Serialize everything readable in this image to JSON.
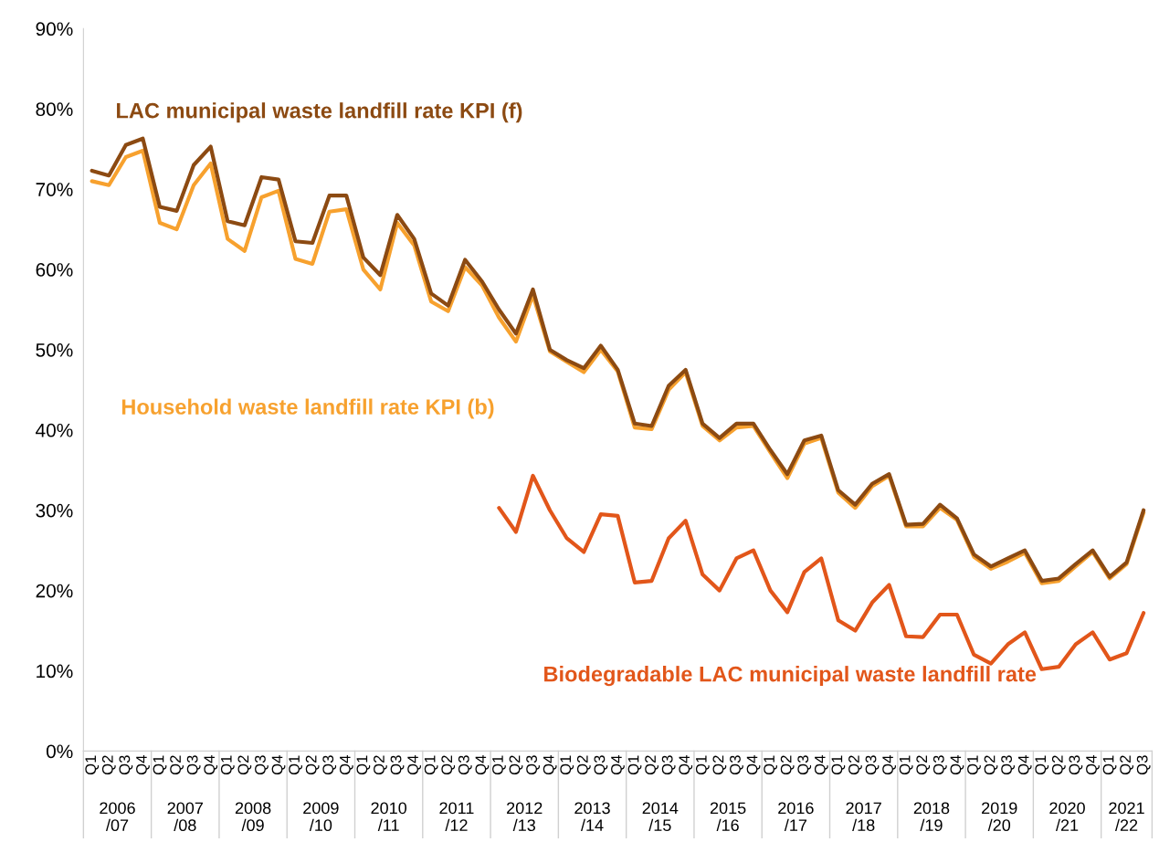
{
  "chart_data": {
    "type": "line",
    "categories": [
      "Q1",
      "Q2",
      "Q3",
      "Q4",
      "Q1",
      "Q2",
      "Q3",
      "Q4",
      "Q1",
      "Q2",
      "Q3",
      "Q4",
      "Q1",
      "Q2",
      "Q3",
      "Q4",
      "Q1",
      "Q2",
      "Q3",
      "Q4",
      "Q1",
      "Q2",
      "Q3",
      "Q4",
      "Q1",
      "Q2",
      "Q3",
      "Q4",
      "Q1",
      "Q2",
      "Q3",
      "Q4",
      "Q1",
      "Q2",
      "Q3",
      "Q4",
      "Q1",
      "Q2",
      "Q3",
      "Q4",
      "Q1",
      "Q2",
      "Q3",
      "Q4",
      "Q1",
      "Q2",
      "Q3",
      "Q4",
      "Q1",
      "Q2",
      "Q3",
      "Q4",
      "Q1",
      "Q2",
      "Q3",
      "Q4",
      "Q1",
      "Q2",
      "Q3",
      "Q4",
      "Q1",
      "Q2",
      "Q3"
    ],
    "annotations": [
      "2006\n/07",
      "2007\n/08",
      "2008\n/09",
      "2009\n/10",
      "2010\n/11",
      "2011\n/12",
      "2012\n/13",
      "2013\n/14",
      "2014\n/15",
      "2015\n/16",
      "2016\n/17",
      "2017\n/18",
      "2018\n/19",
      "2019\n/20",
      "2020\n/21",
      "2021\n/22"
    ],
    "series": [
      {
        "name": "Household waste landfill rate KPI (b)",
        "color": "#f7a12e",
        "values": [
          71,
          70.5,
          74,
          74.8,
          65.8,
          65,
          70.5,
          73.2,
          63.8,
          62.3,
          69,
          69.8,
          61.3,
          60.7,
          67.2,
          67.5,
          60,
          57.5,
          65.8,
          63,
          56,
          54.8,
          60.3,
          58,
          54,
          51,
          56.8,
          49.8,
          48.5,
          47.2,
          50,
          47.3,
          40.3,
          40.1,
          45,
          47.2,
          40.5,
          38.7,
          40.3,
          40.5,
          37.2,
          34,
          38.3,
          39,
          32.2,
          30.3,
          33,
          34.3,
          28,
          28,
          30.3,
          28.8,
          24.2,
          22.7,
          23.6,
          24.7,
          20.9,
          21.2,
          23,
          24.8,
          21.5,
          23.3,
          29.7
        ]
      },
      {
        "name": "LAC municipal waste landfill rate KPI (f)",
        "color": "#8c4a12",
        "values": [
          72.3,
          71.7,
          75.5,
          76.3,
          67.8,
          67.3,
          73,
          75.3,
          66,
          65.5,
          71.5,
          71.2,
          63.5,
          63.3,
          69.2,
          69.2,
          61.5,
          59.3,
          66.8,
          63.8,
          57,
          55.5,
          61.2,
          58.5,
          55,
          52,
          57.5,
          50,
          48.7,
          47.7,
          50.5,
          47.5,
          40.8,
          40.5,
          45.5,
          47.5,
          40.8,
          39,
          40.8,
          40.8,
          37.5,
          34.5,
          38.7,
          39.3,
          32.5,
          30.7,
          33.3,
          34.5,
          28.2,
          28.3,
          30.7,
          29,
          24.5,
          23,
          24,
          25,
          21.2,
          21.5,
          23.3,
          25,
          21.7,
          23.5,
          30
        ]
      },
      {
        "name": "Biodegradable LAC municipal waste landfill rate",
        "color": "#e2561a",
        "values": [
          null,
          null,
          null,
          null,
          null,
          null,
          null,
          null,
          null,
          null,
          null,
          null,
          null,
          null,
          null,
          null,
          null,
          null,
          null,
          null,
          null,
          null,
          null,
          null,
          30.3,
          27.3,
          34.3,
          30,
          26.5,
          24.8,
          29.5,
          29.3,
          21,
          21.2,
          26.5,
          28.7,
          22,
          20,
          24,
          25,
          20,
          17.3,
          22.3,
          24,
          16.3,
          15,
          18.5,
          20.7,
          14.3,
          14.2,
          17,
          17,
          12,
          10.9,
          13.3,
          14.8,
          10.2,
          10.5,
          13.3,
          14.8,
          11.4,
          12.2,
          17.2
        ]
      }
    ],
    "ylim": [
      0,
      90
    ],
    "yticks": [
      {
        "value": 0,
        "label": "0%"
      },
      {
        "value": 10,
        "label": "10%"
      },
      {
        "value": 20,
        "label": "20%"
      },
      {
        "value": 30,
        "label": "30%"
      },
      {
        "value": 40,
        "label": "40%"
      },
      {
        "value": 50,
        "label": "50%"
      },
      {
        "value": 60,
        "label": "60%"
      },
      {
        "value": 70,
        "label": "70%"
      },
      {
        "value": 80,
        "label": "80%"
      },
      {
        "value": 90,
        "label": "90%"
      }
    ],
    "grid": false,
    "legend": false
  }
}
